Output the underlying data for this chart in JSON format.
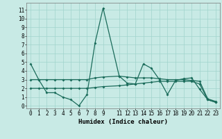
{
  "xlabel": "Humidex (Indice chaleur)",
  "bg_color": "#c8eae5",
  "grid_color": "#a0d4cc",
  "line_color": "#1a6b5a",
  "xlim": [
    -0.5,
    23.5
  ],
  "ylim": [
    -0.3,
    11.8
  ],
  "xticks": [
    0,
    1,
    2,
    3,
    4,
    5,
    6,
    7,
    8,
    9,
    11,
    12,
    13,
    14,
    15,
    16,
    17,
    18,
    19,
    20,
    21,
    22,
    23
  ],
  "yticks": [
    0,
    1,
    2,
    3,
    4,
    5,
    6,
    7,
    8,
    9,
    10,
    11
  ],
  "line1_x": [
    0,
    1,
    2,
    3,
    4,
    5,
    6,
    7,
    8,
    9,
    11,
    12,
    13,
    14,
    15,
    16,
    17,
    18,
    19,
    20,
    21,
    22,
    23
  ],
  "line1_y": [
    4.8,
    3.0,
    1.5,
    1.5,
    1.0,
    0.7,
    0.0,
    1.3,
    7.2,
    11.2,
    3.4,
    2.6,
    2.5,
    4.8,
    4.3,
    3.0,
    1.3,
    2.9,
    3.1,
    3.2,
    1.9,
    0.7,
    0.4
  ],
  "line2_x": [
    0,
    1,
    2,
    3,
    4,
    5,
    6,
    7,
    8,
    9,
    11,
    12,
    13,
    14,
    15,
    16,
    17,
    18,
    19,
    20,
    21,
    22,
    23
  ],
  "line2_y": [
    3.0,
    3.0,
    3.0,
    3.0,
    3.0,
    3.0,
    3.0,
    3.0,
    3.2,
    3.3,
    3.4,
    3.3,
    3.2,
    3.2,
    3.2,
    3.1,
    3.0,
    3.0,
    3.0,
    2.9,
    2.8,
    0.8,
    0.5
  ],
  "line3_x": [
    0,
    1,
    2,
    3,
    4,
    5,
    6,
    7,
    8,
    9,
    11,
    12,
    13,
    14,
    15,
    16,
    17,
    18,
    19,
    20,
    21,
    22,
    23
  ],
  "line3_y": [
    2.0,
    2.0,
    2.0,
    2.0,
    2.0,
    2.0,
    2.0,
    2.0,
    2.1,
    2.2,
    2.3,
    2.4,
    2.5,
    2.6,
    2.7,
    2.8,
    2.8,
    2.8,
    2.8,
    2.8,
    2.5,
    0.7,
    0.4
  ],
  "tick_fontsize": 5.5,
  "xlabel_fontsize": 6.5
}
